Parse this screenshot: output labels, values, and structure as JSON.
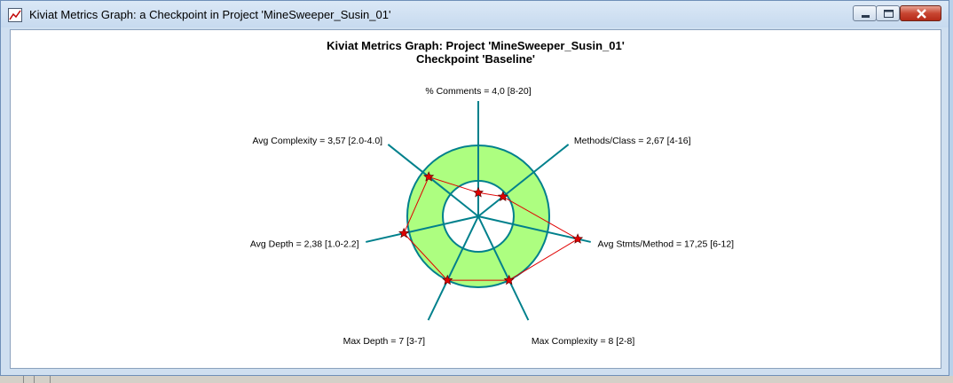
{
  "window": {
    "title": "Kiviat Metrics Graph: a Checkpoint in Project 'MineSweeper_Susin_01'",
    "controls": [
      "minimize",
      "maximize",
      "close"
    ]
  },
  "chart_data": {
    "type": "kiviat",
    "title": "Kiviat Metrics Graph: Project 'MineSweeper_Susin_01'",
    "subtitle": "Checkpoint 'Baseline'",
    "axes": [
      {
        "name": "% Comments",
        "label": "% Comments = 4,0 [8-20]",
        "value": 4.0,
        "min": 8,
        "max": 20
      },
      {
        "name": "Methods/Class",
        "label": "Methods/Class = 2,67 [4-16]",
        "value": 2.67,
        "min": 4,
        "max": 16
      },
      {
        "name": "Avg Stmts/Method",
        "label": "Avg Stmts/Method = 17,25 [6-12]",
        "value": 17.25,
        "min": 6,
        "max": 12
      },
      {
        "name": "Max Complexity",
        "label": "Max Complexity = 8 [2-8]",
        "value": 8,
        "min": 2,
        "max": 8
      },
      {
        "name": "Max Depth",
        "label": "Max Depth = 7 [3-7]",
        "value": 7,
        "min": 3,
        "max": 7
      },
      {
        "name": "Avg Depth",
        "label": "Avg Depth = 2,38 [1.0-2.2]",
        "value": 2.38,
        "min": 1.0,
        "max": 2.2
      },
      {
        "name": "Avg Complexity",
        "label": "Avg Complexity = 3,57 [2.0-4.0]",
        "value": 3.57,
        "min": 2.0,
        "max": 4.0
      }
    ],
    "colors": {
      "band_fill": "#adfe80",
      "band_stroke": "#00808c",
      "axis": "#00808c",
      "polygon": "#e00000",
      "marker": "#e00000"
    }
  }
}
